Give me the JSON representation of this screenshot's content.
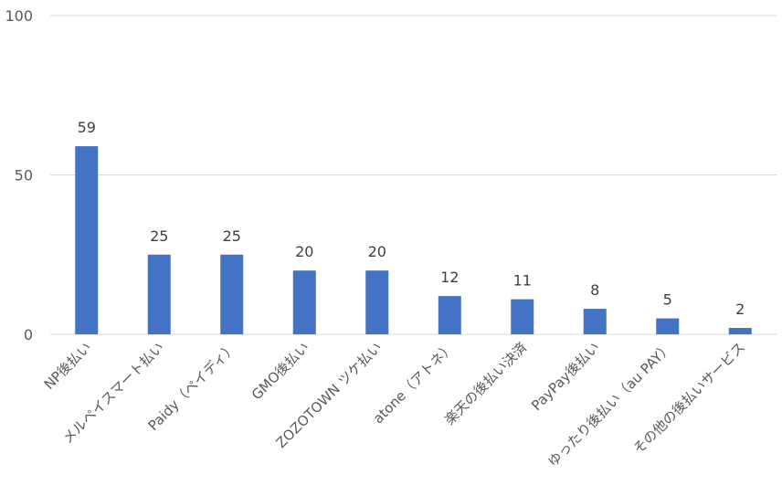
{
  "chart_data": {
    "type": "bar",
    "categories": [
      "NP後払い",
      "メルペイスマート払い",
      "Paidy（ペイディ）",
      "GMO後払い",
      "ZOZOTOWN ツケ払い",
      "atone（アトネ）",
      "楽天の後払い決済",
      "PayPay後払い",
      "ゆったり後払い（au PAY）",
      "その他の後払いサービス"
    ],
    "values": [
      59,
      25,
      25,
      20,
      20,
      12,
      11,
      8,
      5,
      2
    ],
    "data_labels": [
      "59",
      "25",
      "25",
      "20",
      "20",
      "12",
      "11",
      "8",
      "5",
      "2"
    ],
    "yticks": [
      "0",
      "50",
      "100"
    ],
    "ylim": [
      0,
      100
    ],
    "grid": true,
    "legend": "none",
    "colors": {
      "bar": "#4472C4",
      "grid": "#D9D9D9",
      "text": "#595959"
    }
  }
}
